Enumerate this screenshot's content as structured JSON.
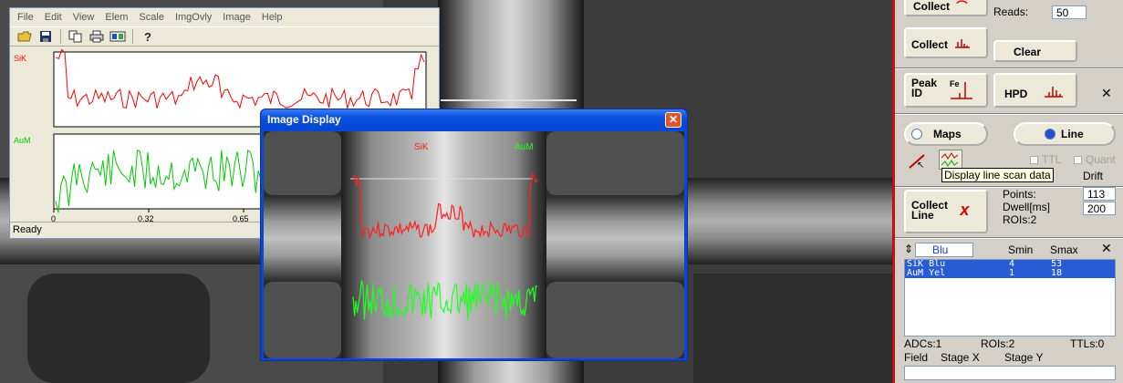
{
  "scan_window": {
    "menu": [
      "File",
      "Edit",
      "View",
      "Elem",
      "Scale",
      "ImgOvly",
      "Image",
      "Help"
    ],
    "toolbar_icons": [
      "open-folder-icon",
      "save-icon",
      "copy-icon",
      "print-icon",
      "image-icon",
      "help-icon"
    ],
    "channels": [
      {
        "label": "SiK",
        "color": "#ff0000"
      },
      {
        "label": "AuM",
        "color": "#00cc00"
      }
    ],
    "x_ticks": [
      "0",
      "0.32",
      "0.65"
    ],
    "status": "Ready"
  },
  "image_window": {
    "title": "Image Display",
    "labels": {
      "sik": "SiK",
      "aum": "AuM"
    },
    "sik_color": "#ff2020",
    "aum_color": "#20ff20"
  },
  "panel": {
    "collect_top_label": "Collect",
    "reads_label": "Reads:",
    "reads_value": "50",
    "collect_label": "Collect",
    "clear_label": "Clear",
    "peak_id_label": "Peak\nID",
    "hpd_label": "HPD",
    "maps_label": "Maps",
    "line_label": "Line",
    "ttl_label": "TTL",
    "quant_label": "Quant",
    "drift_label": "Drift",
    "tooltip": "Display line scan data",
    "collect_line_label": "Collect\nLine",
    "points_label": "Points:",
    "points_value": "113",
    "dwell_label": "Dwell[ms]",
    "dwell_value": "200",
    "rois_label": "ROIs:2",
    "color_select": "Blu",
    "smin_label": "Smin",
    "smax_label": "Smax",
    "roi_rows": [
      {
        "name": "SiK Blu",
        "smin": "4",
        "smax": "53"
      },
      {
        "name": "AuM Yel",
        "smin": "1",
        "smax": "18"
      }
    ],
    "adcs": "ADCs:1",
    "rois_bottom": "ROIs:2",
    "ttls": "TTLs:0",
    "field_label": "Field",
    "stage_x_label": "Stage X",
    "stage_y_label": "Stage Y"
  }
}
